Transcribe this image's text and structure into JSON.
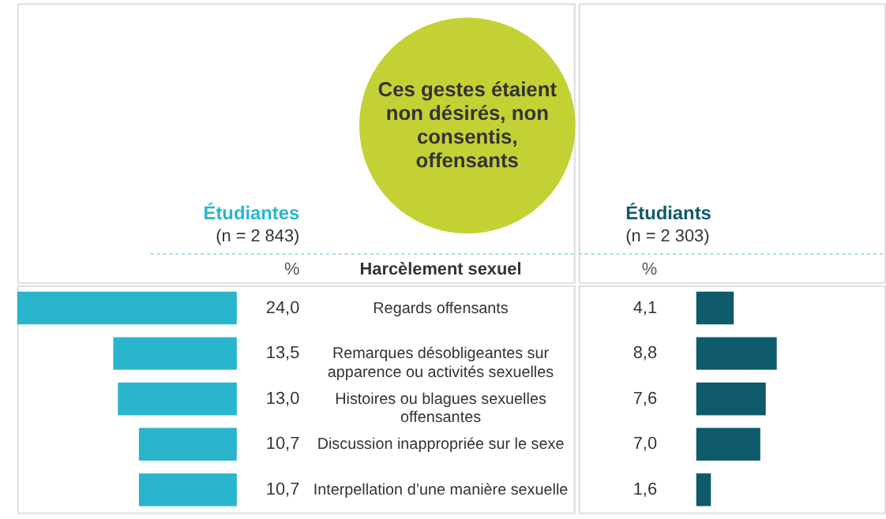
{
  "chart_data": [
    {
      "type": "bar",
      "orientation": "horizontal",
      "title": "Ces gestes étaient non désirés, non consentis, offensants",
      "subtitle": "Harcèlement sexuel",
      "categories": [
        "Regards offensants",
        "Remarques désobligeantes sur apparence ou activités sexuelles",
        "Histoires ou blagues sexuelles offensantes",
        "Discussion inappropriée sur le sexe",
        "Interpellation d’une manière sexuelle"
      ],
      "series": [
        {
          "name": "Étudiantes",
          "color": "#29b6cc",
          "values": [
            24.0,
            13.5,
            13.0,
            10.7,
            10.7
          ],
          "value_labels": [
            "24,0",
            "13,5",
            "13,0",
            "10,7",
            "10,7"
          ]
        }
      ],
      "annotations": [
        "(n = 2 843)",
        "%"
      ],
      "legend": false
    },
    {
      "type": "bar",
      "orientation": "horizontal",
      "categories": [
        null,
        null,
        null,
        null,
        null
      ],
      "tick_labels": false,
      "series": [
        {
          "name": "Étudiants",
          "color": "#0f5a6b",
          "values": [
            4.1,
            8.8,
            7.6,
            7.0,
            1.6
          ],
          "value_labels": [
            "4,1",
            "8,8",
            "7,6",
            "7,0",
            "1,6"
          ]
        }
      ],
      "annotations": [
        "(n = 2 303)",
        "%"
      ],
      "legend": false
    }
  ]
}
